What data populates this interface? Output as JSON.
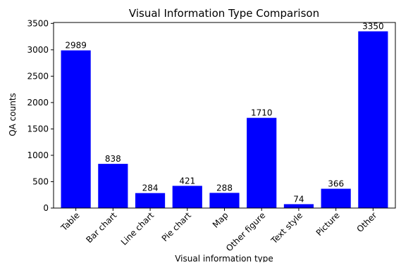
{
  "chart_data": {
    "type": "bar",
    "title": "Visual Information Type Comparison",
    "xlabel": "Visual information type",
    "ylabel": "QA counts",
    "categories": [
      "Table",
      "Bar chart",
      "Line chart",
      "Pie chart",
      "Map",
      "Other figure",
      "Text style",
      "Picture",
      "Other"
    ],
    "values": [
      2989,
      838,
      284,
      421,
      288,
      1710,
      74,
      366,
      3350
    ],
    "value_labels": [
      "2989",
      "838",
      "284",
      "421",
      "288",
      "1710",
      "74",
      "366",
      "3350"
    ],
    "ylim": [
      0,
      3517.5
    ],
    "yticks": [
      0,
      500,
      1000,
      1500,
      2000,
      2500,
      3000,
      3500
    ],
    "ytick_labels": [
      "0",
      "500",
      "1000",
      "1500",
      "2000",
      "2500",
      "3000",
      "3500"
    ],
    "bar_color": "#0000ff",
    "grid": false,
    "legend": "none"
  }
}
